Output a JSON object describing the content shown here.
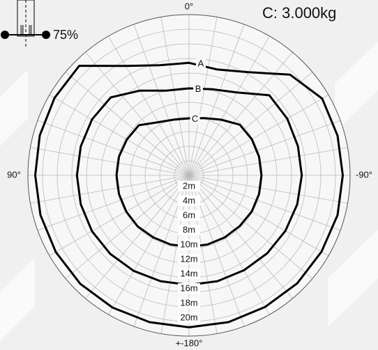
{
  "chart_data": {
    "type": "polar",
    "title": "C: 3.000kg",
    "badge": "75%",
    "rlim": [
      0,
      22
    ],
    "rticks": [
      {
        "value": 2,
        "label": "2m"
      },
      {
        "value": 4,
        "label": "4m"
      },
      {
        "value": 6,
        "label": "6m"
      },
      {
        "value": 8,
        "label": "8m"
      },
      {
        "value": 10,
        "label": "10m"
      },
      {
        "value": 12,
        "label": "12m"
      },
      {
        "value": 14,
        "label": "14m"
      },
      {
        "value": 16,
        "label": "16m"
      },
      {
        "value": 18,
        "label": "18m"
      },
      {
        "value": 20,
        "label": "20m"
      }
    ],
    "thetaticks": [
      {
        "value": 0,
        "label": "0°"
      },
      {
        "value": 90,
        "label": "90°"
      },
      {
        "value": -90,
        "label": "-90°"
      },
      {
        "value": 180,
        "label": "+-180°"
      }
    ],
    "thetagrid": [
      -170,
      -160,
      -150,
      -140,
      -130,
      -120,
      -110,
      -100,
      -90,
      -80,
      -70,
      -60,
      -50,
      -40,
      -30,
      -20,
      -10,
      0,
      10,
      20,
      30,
      40,
      50,
      60,
      70,
      80,
      90,
      100,
      110,
      120,
      130,
      140,
      150,
      160,
      170,
      180
    ],
    "theta": [
      180,
      165,
      150,
      135,
      120,
      105,
      90,
      75,
      60,
      45,
      30,
      15,
      0,
      -15,
      -30,
      -45,
      -60,
      -75,
      -90,
      -105,
      -120,
      -135,
      -150,
      -165,
      -180
    ],
    "series": [
      {
        "name": "A",
        "color": "#000000",
        "values": [
          20.8,
          20.8,
          20.9,
          21,
          21,
          21,
          21,
          21.1,
          21.2,
          21.2,
          17.3,
          15.6,
          15.4,
          15.0,
          16.3,
          19.5,
          21,
          21,
          21,
          21,
          20.9,
          20.9,
          20.8,
          20.8,
          20.8
        ]
      },
      {
        "name": "B",
        "color": "#000000",
        "values": [
          15.0,
          15.0,
          15.1,
          15.2,
          15.3,
          15.3,
          15.3,
          15.3,
          15.3,
          15.1,
          13.4,
          12.0,
          11.9,
          12.2,
          13.1,
          15.5,
          15.5,
          15.4,
          15.4,
          15.3,
          15.2,
          15.1,
          15.0,
          15.0,
          15.0
        ]
      },
      {
        "name": "C",
        "color": "#000000",
        "values": [
          9.8,
          9.8,
          9.8,
          9.9,
          9.9,
          9.9,
          9.9,
          9.9,
          9.8,
          9.7,
          8.4,
          7.9,
          7.8,
          8.1,
          8.8,
          9.8,
          9.9,
          9.9,
          9.9,
          9.9,
          9.9,
          9.8,
          9.8,
          9.8,
          9.8
        ]
      }
    ]
  }
}
